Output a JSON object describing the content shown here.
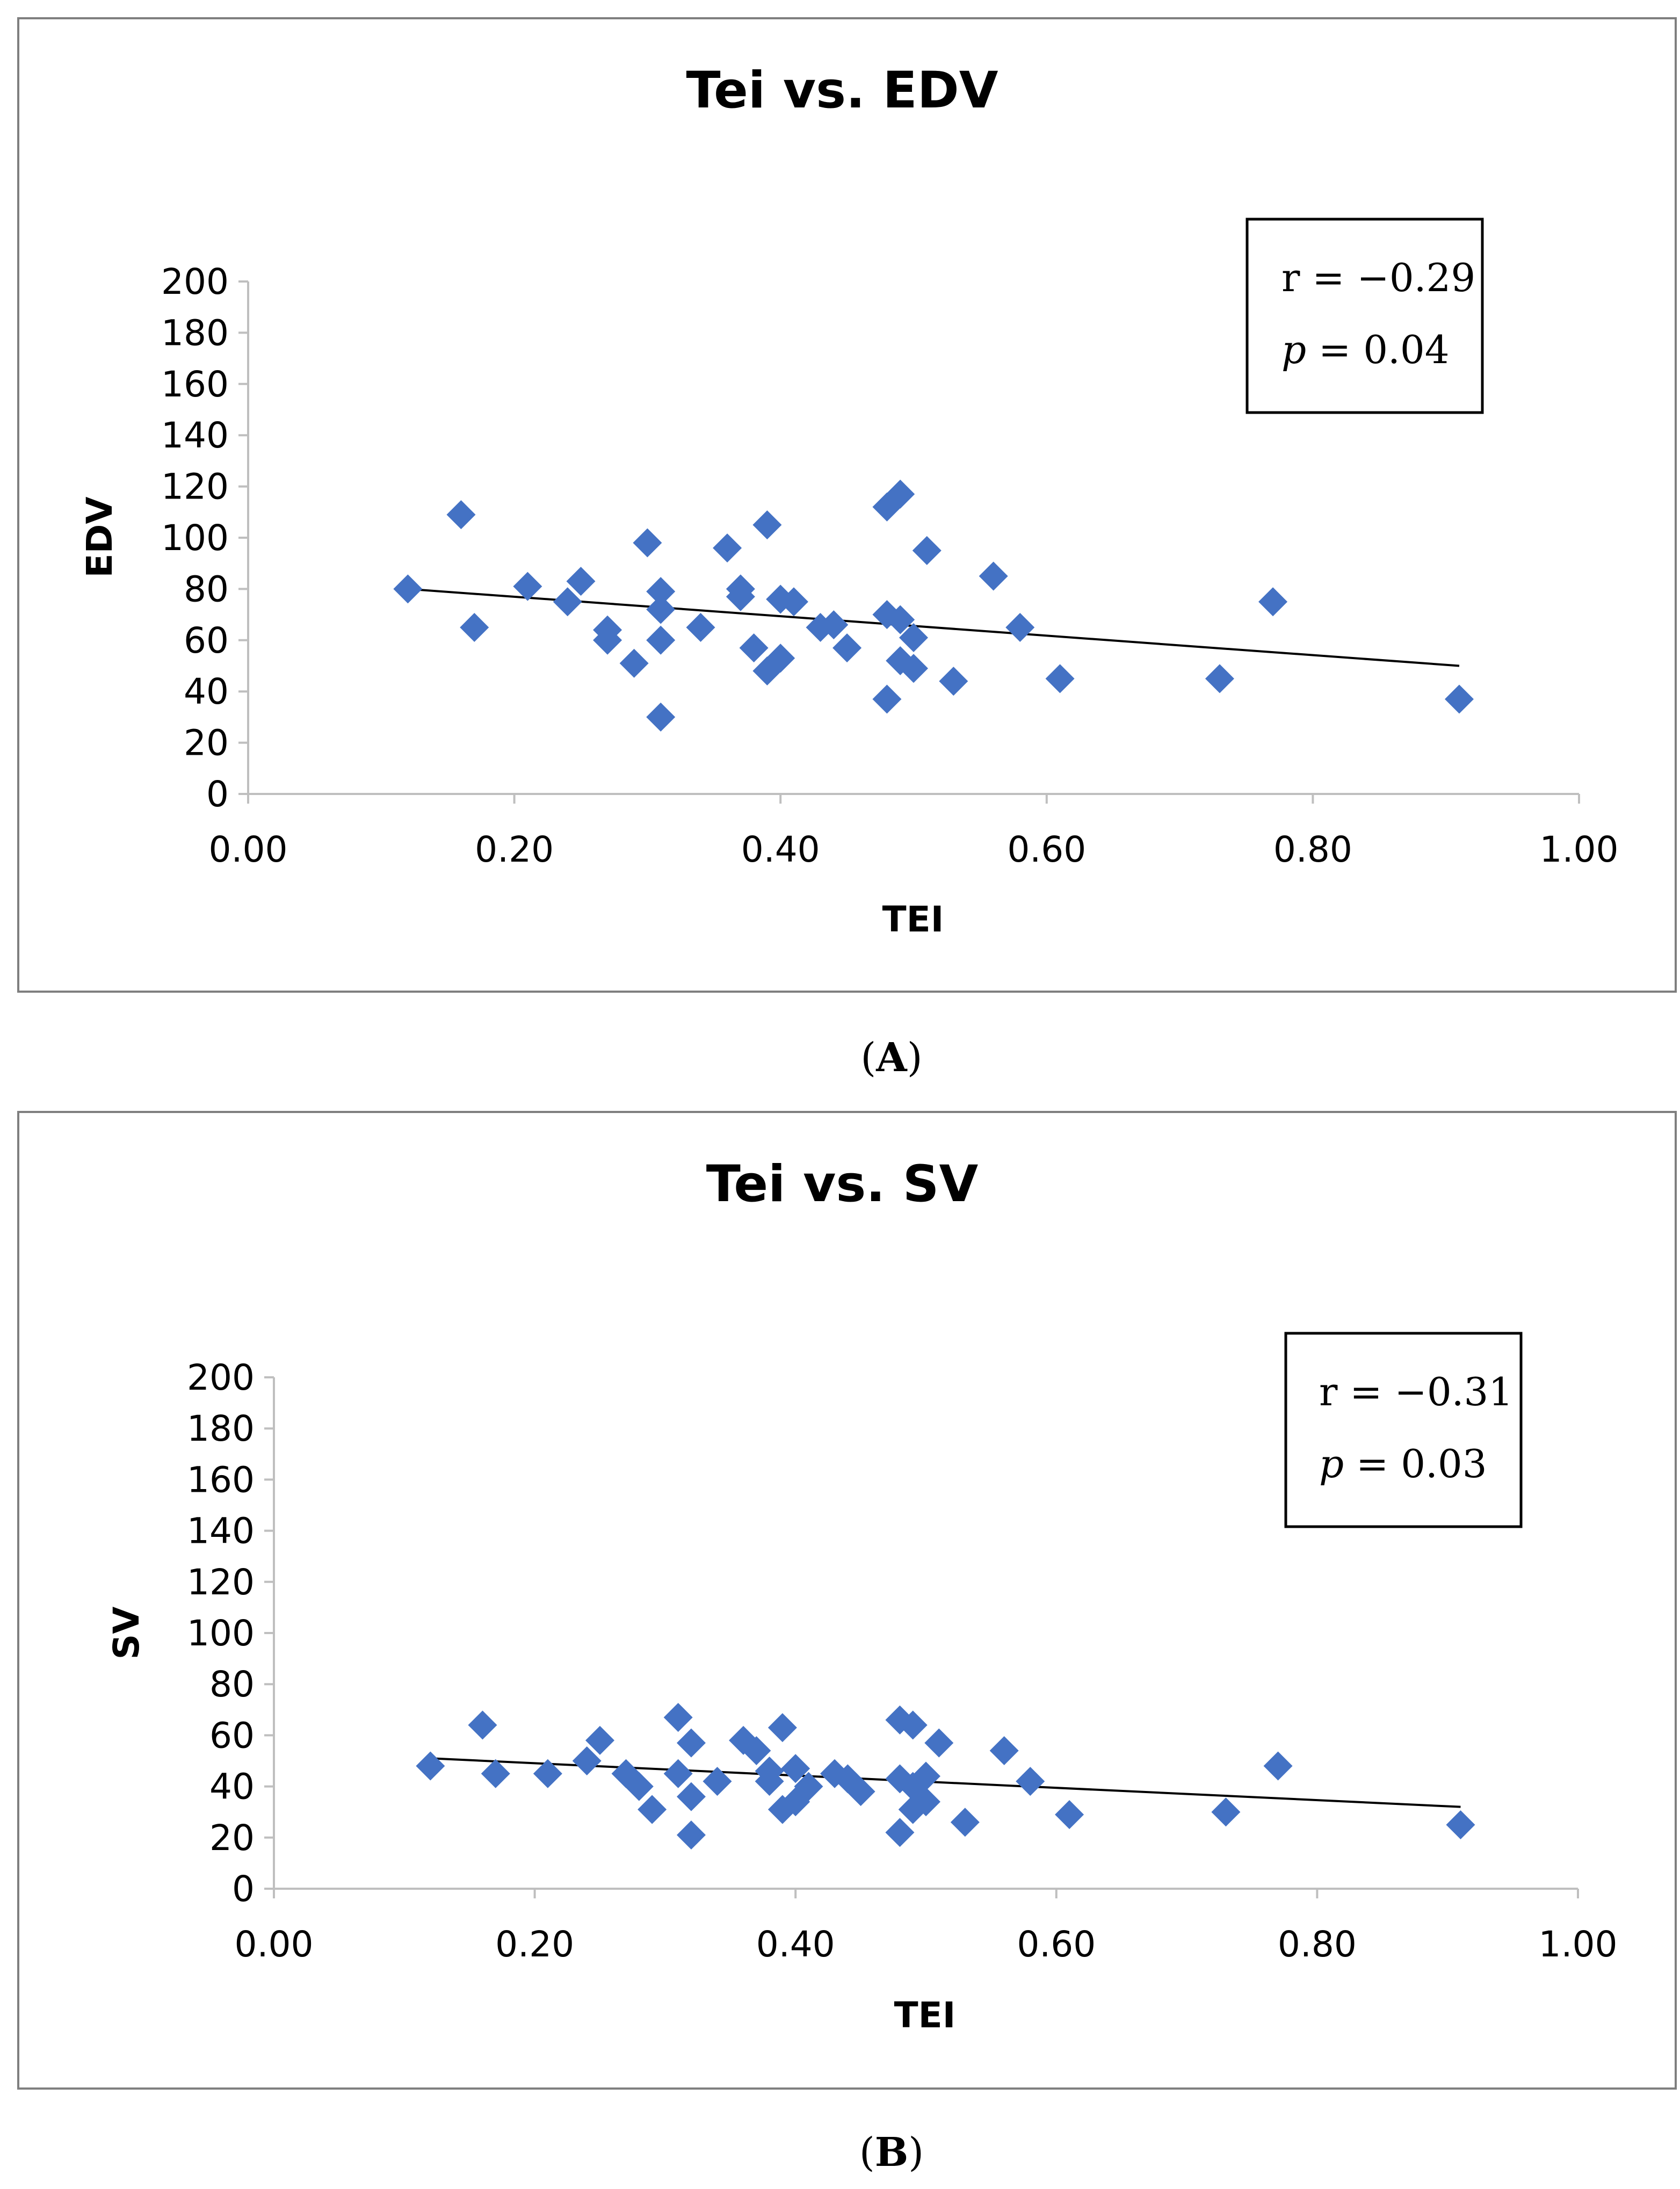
{
  "chart_data": [
    {
      "type": "scatter",
      "title": "Tei vs. EDV",
      "xlabel": "TEI",
      "ylabel": "EDV",
      "xlim": [
        0,
        1
      ],
      "ylim": [
        0,
        200
      ],
      "xticks": [
        "0.00",
        "0.20",
        "0.40",
        "0.60",
        "0.80",
        "1.00"
      ],
      "yticks": [
        "0",
        "20",
        "40",
        "60",
        "80",
        "100",
        "120",
        "140",
        "160",
        "180",
        "200"
      ],
      "stats": {
        "r_line": "r = −0.29",
        "p_symbol": "p",
        "p_value": " = 0.04"
      },
      "panel_label": {
        "open": "(",
        "letter": "A",
        "close": ")"
      },
      "marker_color": "#4472C4",
      "trendline": {
        "x": [
          0.12,
          0.91
        ],
        "y": [
          80,
          50
        ]
      },
      "points": [
        {
          "x": 0.12,
          "y": 80
        },
        {
          "x": 0.16,
          "y": 109
        },
        {
          "x": 0.17,
          "y": 65
        },
        {
          "x": 0.21,
          "y": 81
        },
        {
          "x": 0.24,
          "y": 75
        },
        {
          "x": 0.25,
          "y": 83
        },
        {
          "x": 0.27,
          "y": 64
        },
        {
          "x": 0.27,
          "y": 60
        },
        {
          "x": 0.29,
          "y": 51
        },
        {
          "x": 0.3,
          "y": 98
        },
        {
          "x": 0.31,
          "y": 79
        },
        {
          "x": 0.31,
          "y": 72
        },
        {
          "x": 0.31,
          "y": 60
        },
        {
          "x": 0.31,
          "y": 30
        },
        {
          "x": 0.34,
          "y": 65
        },
        {
          "x": 0.36,
          "y": 96
        },
        {
          "x": 0.37,
          "y": 80
        },
        {
          "x": 0.37,
          "y": 77
        },
        {
          "x": 0.38,
          "y": 57
        },
        {
          "x": 0.39,
          "y": 105
        },
        {
          "x": 0.39,
          "y": 48
        },
        {
          "x": 0.4,
          "y": 76
        },
        {
          "x": 0.4,
          "y": 53
        },
        {
          "x": 0.41,
          "y": 75
        },
        {
          "x": 0.43,
          "y": 65
        },
        {
          "x": 0.44,
          "y": 66
        },
        {
          "x": 0.45,
          "y": 57
        },
        {
          "x": 0.48,
          "y": 112
        },
        {
          "x": 0.48,
          "y": 70
        },
        {
          "x": 0.48,
          "y": 37
        },
        {
          "x": 0.49,
          "y": 117
        },
        {
          "x": 0.49,
          "y": 68
        },
        {
          "x": 0.49,
          "y": 52
        },
        {
          "x": 0.5,
          "y": 61
        },
        {
          "x": 0.5,
          "y": 49
        },
        {
          "x": 0.51,
          "y": 95
        },
        {
          "x": 0.53,
          "y": 44
        },
        {
          "x": 0.56,
          "y": 85
        },
        {
          "x": 0.58,
          "y": 65
        },
        {
          "x": 0.61,
          "y": 45
        },
        {
          "x": 0.73,
          "y": 45
        },
        {
          "x": 0.77,
          "y": 75
        },
        {
          "x": 0.91,
          "y": 37
        }
      ]
    },
    {
      "type": "scatter",
      "title": "Tei vs. SV",
      "xlabel": "TEI",
      "ylabel": "SV",
      "xlim": [
        0,
        1
      ],
      "ylim": [
        0,
        200
      ],
      "xticks": [
        "0.00",
        "0.20",
        "0.40",
        "0.60",
        "0.80",
        "1.00"
      ],
      "yticks": [
        "0",
        "20",
        "40",
        "60",
        "80",
        "100",
        "120",
        "140",
        "160",
        "180",
        "200"
      ],
      "stats": {
        "r_line": "r = −0.31",
        "p_symbol": "p",
        "p_value": " = 0.03"
      },
      "panel_label": {
        "open": "(",
        "letter": "B",
        "close": ")"
      },
      "marker_color": "#4472C4",
      "trendline": {
        "x": [
          0.12,
          0.91
        ],
        "y": [
          51,
          32
        ]
      },
      "points": [
        {
          "x": 0.12,
          "y": 48
        },
        {
          "x": 0.16,
          "y": 64
        },
        {
          "x": 0.17,
          "y": 45
        },
        {
          "x": 0.21,
          "y": 45
        },
        {
          "x": 0.24,
          "y": 50
        },
        {
          "x": 0.25,
          "y": 58
        },
        {
          "x": 0.27,
          "y": 45
        },
        {
          "x": 0.28,
          "y": 40
        },
        {
          "x": 0.29,
          "y": 31
        },
        {
          "x": 0.31,
          "y": 67
        },
        {
          "x": 0.31,
          "y": 45
        },
        {
          "x": 0.32,
          "y": 57
        },
        {
          "x": 0.32,
          "y": 36
        },
        {
          "x": 0.32,
          "y": 21
        },
        {
          "x": 0.34,
          "y": 42
        },
        {
          "x": 0.36,
          "y": 58
        },
        {
          "x": 0.37,
          "y": 54
        },
        {
          "x": 0.38,
          "y": 46
        },
        {
          "x": 0.38,
          "y": 42
        },
        {
          "x": 0.39,
          "y": 63
        },
        {
          "x": 0.39,
          "y": 31
        },
        {
          "x": 0.4,
          "y": 47
        },
        {
          "x": 0.4,
          "y": 34
        },
        {
          "x": 0.41,
          "y": 40
        },
        {
          "x": 0.43,
          "y": 45
        },
        {
          "x": 0.44,
          "y": 43
        },
        {
          "x": 0.45,
          "y": 38
        },
        {
          "x": 0.48,
          "y": 66
        },
        {
          "x": 0.48,
          "y": 43
        },
        {
          "x": 0.48,
          "y": 22
        },
        {
          "x": 0.49,
          "y": 64
        },
        {
          "x": 0.49,
          "y": 40
        },
        {
          "x": 0.49,
          "y": 31
        },
        {
          "x": 0.5,
          "y": 44
        },
        {
          "x": 0.5,
          "y": 34
        },
        {
          "x": 0.51,
          "y": 57
        },
        {
          "x": 0.53,
          "y": 26
        },
        {
          "x": 0.56,
          "y": 54
        },
        {
          "x": 0.58,
          "y": 42
        },
        {
          "x": 0.61,
          "y": 29
        },
        {
          "x": 0.73,
          "y": 30
        },
        {
          "x": 0.77,
          "y": 48
        },
        {
          "x": 0.91,
          "y": 25
        }
      ]
    }
  ]
}
